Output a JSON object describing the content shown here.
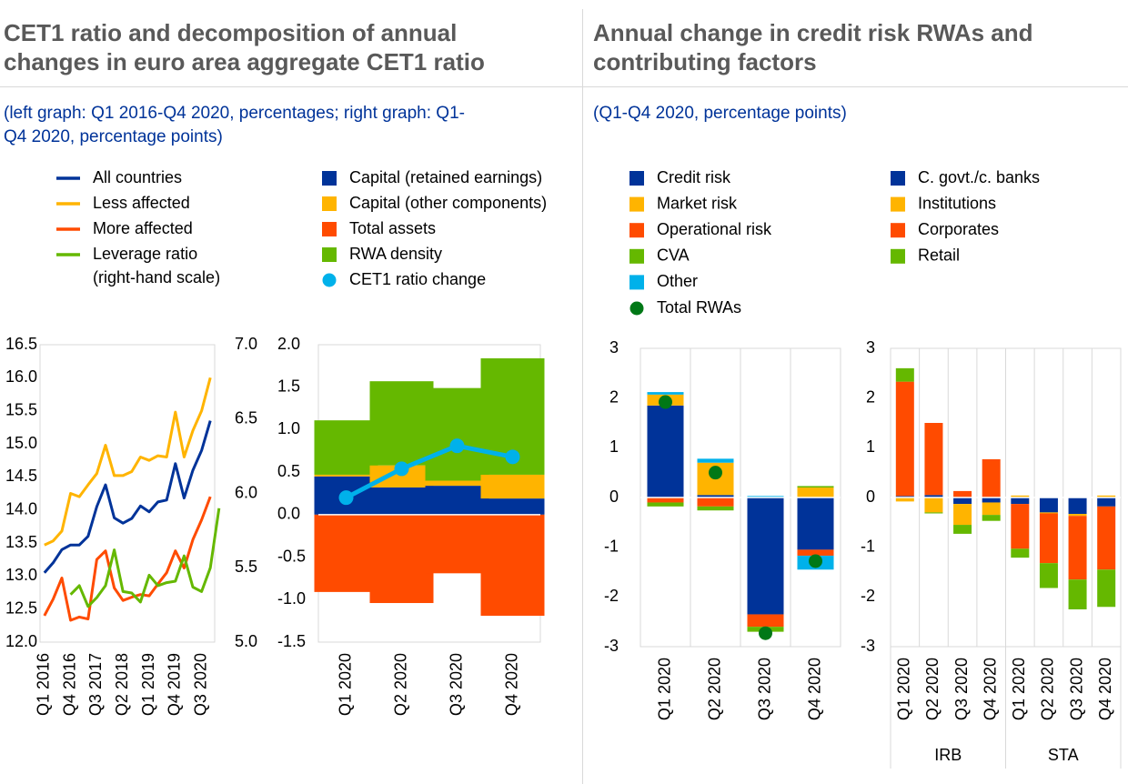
{
  "left_panel": {
    "title_line1": "CET1 ratio and decomposition of annual",
    "title_line2": "changes in euro area aggregate CET1 ratio",
    "subtitle_line1": "(left graph: Q1 2016-Q4 2020, percentages; right graph: Q1-",
    "subtitle_line2": "Q4 2020, percentage points)"
  },
  "right_panel": {
    "title_line1": "Annual change in credit risk RWAs and",
    "title_line2": "contributing factors",
    "subtitle": "(Q1-Q4 2020, percentage points)"
  },
  "colors": {
    "dark_blue": "#003399",
    "yellow": "#ffb400",
    "orange": "#ff4b00",
    "green": "#65b800",
    "light_blue": "#00b1ea",
    "dark_green": "#007816",
    "axis": "#d9d9d9"
  },
  "chart_data": [
    {
      "id": "cet1_lines",
      "type": "line",
      "x_tick_labels": [
        "Q1 2016",
        "Q4 2016",
        "Q3 2017",
        "Q2 2018",
        "Q1 2019",
        "Q4 2019",
        "Q3 2020"
      ],
      "x_tick_indices": [
        0,
        3,
        6,
        9,
        12,
        15,
        18
      ],
      "n_points": 20,
      "ylim": [
        12.0,
        16.5
      ],
      "y_ticks": [
        "16.5",
        "16.0",
        "15.5",
        "15.0",
        "14.5",
        "14.0",
        "13.5",
        "13.0",
        "12.5",
        "12.0"
      ],
      "y_right_lim": [
        5.0,
        7.0
      ],
      "y_right_ticks": [
        "7.0",
        "6.5",
        "6.0",
        "5.5",
        "5.0"
      ],
      "legend": [
        {
          "label": "All countries",
          "color": "#003399"
        },
        {
          "label": "Less affected",
          "color": "#ffb400"
        },
        {
          "label": "More affected",
          "color": "#ff4b00"
        },
        {
          "label": "Leverage ratio",
          "label2": "(right-hand scale)",
          "color": "#65b800"
        }
      ],
      "series": [
        {
          "name": "All countries",
          "axis": "left",
          "color": "#003399",
          "values": [
            13.05,
            13.2,
            13.4,
            13.47,
            13.47,
            13.6,
            14.05,
            14.38,
            13.88,
            13.8,
            13.87,
            14.06,
            13.97,
            14.12,
            14.15,
            14.7,
            14.18,
            14.6,
            14.9,
            15.35
          ]
        },
        {
          "name": "Less affected",
          "axis": "left",
          "color": "#ffb400",
          "values": [
            13.47,
            13.53,
            13.68,
            14.25,
            14.2,
            14.38,
            14.55,
            14.98,
            14.52,
            14.52,
            14.58,
            14.8,
            14.75,
            14.82,
            14.8,
            15.48,
            14.8,
            15.2,
            15.5,
            16.0
          ]
        },
        {
          "name": "More affected",
          "axis": "left",
          "color": "#ff4b00",
          "values": [
            12.4,
            12.65,
            12.97,
            12.33,
            12.38,
            12.35,
            13.25,
            13.38,
            12.82,
            12.63,
            12.68,
            12.72,
            12.7,
            12.88,
            13.05,
            13.38,
            13.12,
            13.55,
            13.85,
            14.2
          ]
        },
        {
          "name": "Leverage ratio",
          "axis": "right",
          "color": "#65b800",
          "x_start": 3,
          "values": [
            5.32,
            5.38,
            5.24,
            5.3,
            5.38,
            5.62,
            5.34,
            5.33,
            5.27,
            5.45,
            5.38,
            5.4,
            5.41,
            5.58,
            5.37,
            5.34,
            5.5,
            5.9
          ]
        }
      ]
    },
    {
      "id": "cet1_decomp",
      "type": "bar",
      "categories": [
        "Q1 2020",
        "Q2 2020",
        "Q3 2020",
        "Q4 2020"
      ],
      "ylim": [
        -1.5,
        2.0
      ],
      "y_ticks": [
        "2.0",
        "1.5",
        "1.0",
        "0.5",
        "0.0",
        "-0.5",
        "-1.0",
        "-1.5"
      ],
      "legend": [
        {
          "label": "Capital (retained earnings)",
          "color": "#003399",
          "kind": "box"
        },
        {
          "label": "Capital (other components)",
          "color": "#ffb400",
          "kind": "box"
        },
        {
          "label": "Total assets",
          "color": "#ff4b00",
          "kind": "box"
        },
        {
          "label": "RWA density",
          "color": "#65b800",
          "kind": "box"
        },
        {
          "label": "CET1 ratio change",
          "color": "#00b1ea",
          "kind": "dot"
        }
      ],
      "series": [
        {
          "name": "Capital (retained earnings)",
          "color": "#003399",
          "values": [
            0.45,
            0.32,
            0.34,
            0.19
          ]
        },
        {
          "name": "Capital (other components)",
          "color": "#ffb400",
          "values": [
            0.02,
            0.26,
            0.06,
            0.28
          ]
        },
        {
          "name": "Total assets",
          "color": "#ff4b00",
          "values": [
            -0.91,
            -1.04,
            -0.69,
            -1.19
          ]
        },
        {
          "name": "RWA density",
          "color": "#65b800",
          "values": [
            0.64,
            0.99,
            1.09,
            1.37
          ]
        }
      ],
      "line": {
        "name": "CET1 ratio change",
        "color": "#00b1ea",
        "values": [
          0.2,
          0.54,
          0.81,
          0.68
        ]
      }
    },
    {
      "id": "rwa_risk_type",
      "type": "bar",
      "categories": [
        "Q1 2020",
        "Q2 2020",
        "Q3 2020",
        "Q4 2020"
      ],
      "ylim": [
        -3,
        3
      ],
      "y_ticks": [
        "3",
        "2",
        "1",
        "0",
        "-1",
        "-2",
        "-3"
      ],
      "legend": [
        {
          "label": "Credit risk",
          "color": "#003399",
          "kind": "box"
        },
        {
          "label": "Market risk",
          "color": "#ffb400",
          "kind": "box"
        },
        {
          "label": "Operational risk",
          "color": "#ff4b00",
          "kind": "box"
        },
        {
          "label": "CVA",
          "color": "#65b800",
          "kind": "box"
        },
        {
          "label": "Other",
          "color": "#00b1ea",
          "kind": "box"
        },
        {
          "label": "Total RWAs",
          "color": "#007816",
          "kind": "dot"
        }
      ],
      "series": [
        {
          "name": "Credit risk",
          "color": "#003399",
          "values": [
            1.85,
            0.05,
            -2.35,
            -1.05
          ]
        },
        {
          "name": "Market risk",
          "color": "#ffb400",
          "values": [
            0.22,
            0.65,
            0.01,
            0.2
          ]
        },
        {
          "name": "Operational risk",
          "color": "#ff4b00",
          "values": [
            -0.1,
            -0.18,
            -0.25,
            -0.12
          ]
        },
        {
          "name": "CVA",
          "color": "#65b800",
          "values": [
            -0.08,
            -0.08,
            -0.1,
            0.03
          ]
        },
        {
          "name": "Other",
          "color": "#00b1ea",
          "values": [
            0.05,
            0.08,
            0.02,
            -0.28
          ]
        }
      ],
      "dots": {
        "name": "Total RWAs",
        "color": "#007816",
        "values": [
          1.92,
          0.5,
          -2.73,
          -1.28
        ]
      }
    },
    {
      "id": "rwa_exposure_class",
      "type": "bar",
      "categories": [
        "Q1 2020",
        "Q2 2020",
        "Q3 2020",
        "Q4 2020",
        "Q1 2020",
        "Q2 2020",
        "Q3 2020",
        "Q4 2020"
      ],
      "groups": [
        {
          "label": "IRB",
          "size": 4
        },
        {
          "label": "STA",
          "size": 4
        }
      ],
      "ylim": [
        -3,
        3
      ],
      "y_ticks": [
        "3",
        "2",
        "1",
        "0",
        "-1",
        "-2",
        "-3"
      ],
      "legend": [
        {
          "label": "C. govt./c. banks",
          "color": "#003399",
          "kind": "box"
        },
        {
          "label": "Institutions",
          "color": "#ffb400",
          "kind": "box"
        },
        {
          "label": "Corporates",
          "color": "#ff4b00",
          "kind": "box"
        },
        {
          "label": "Retail",
          "color": "#65b800",
          "kind": "box"
        }
      ],
      "series": [
        {
          "name": "C. govt./c. banks",
          "color": "#003399",
          "values": [
            0.03,
            0.05,
            -0.13,
            -0.1,
            -0.13,
            -0.3,
            -0.33,
            -0.18
          ]
        },
        {
          "name": "Institutions",
          "color": "#ffb400",
          "values": [
            -0.08,
            -0.3,
            -0.42,
            -0.25,
            0.04,
            -0.02,
            -0.04,
            0.04
          ]
        },
        {
          "name": "Corporates",
          "color": "#ff4b00",
          "values": [
            2.3,
            1.45,
            0.13,
            0.77,
            -0.9,
            -1.0,
            -1.28,
            -1.27
          ]
        },
        {
          "name": "Retail",
          "color": "#65b800",
          "values": [
            0.27,
            -0.02,
            -0.18,
            -0.12,
            -0.18,
            -0.5,
            -0.6,
            -0.75
          ]
        }
      ]
    }
  ]
}
